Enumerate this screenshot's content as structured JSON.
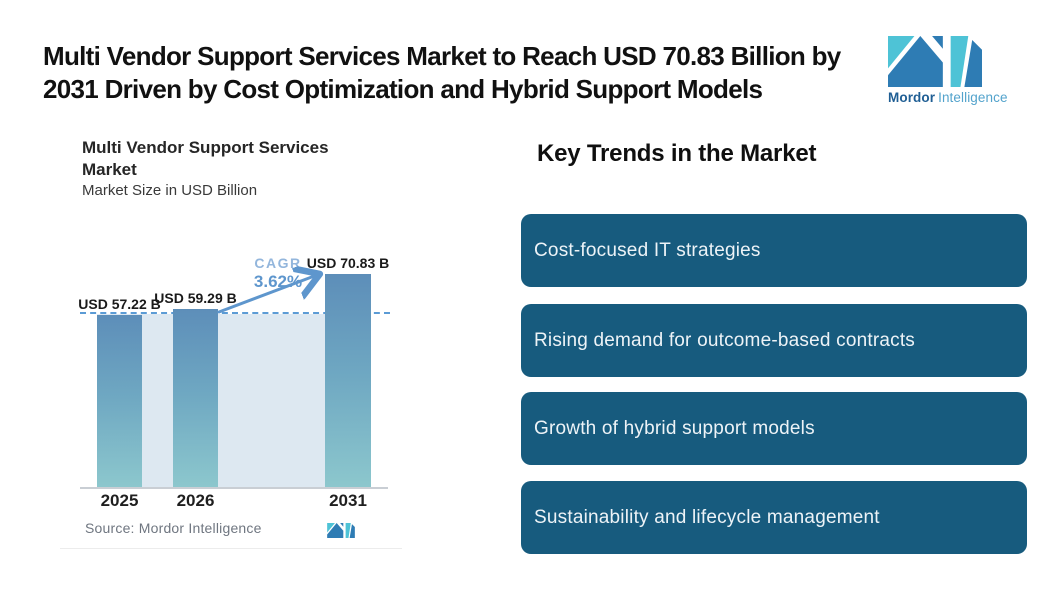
{
  "header": {
    "title_line1": "Multi Vendor Support Services Market to Reach USD 70.83 Billion by",
    "title_line2": "2031 Driven by Cost Optimization and Hybrid Support Models",
    "brand": {
      "name_bold": "Mordor",
      "name_light": "Intelligence"
    }
  },
  "chart": {
    "title_line1": "Multi Vendor Support Services",
    "title_line2": "Market",
    "subtitle": "Market Size in USD Billion",
    "cagr_label": "CAGR",
    "cagr_value": "3.62%",
    "source": "Source: Mordor Intelligence"
  },
  "chart_data": {
    "type": "bar",
    "categories": [
      "2025",
      "2026",
      "2031"
    ],
    "values": [
      57.22,
      59.29,
      70.83
    ],
    "bar_labels": [
      "USD 57.22 B",
      "USD 59.29 B",
      "USD 70.83 B"
    ],
    "title": "Multi Vendor Support Services Market",
    "xlabel": "",
    "ylabel": "Market Size in USD Billion",
    "ylim": [
      0,
      75
    ],
    "cagr": "3.62%",
    "grid": false,
    "legend": "none",
    "annotations": [
      "CAGR 3.62% arrow from 2026 bar to 2031 bar",
      "dashed reference line at 2025 level"
    ]
  },
  "trends": {
    "heading": "Key Trends in the Market",
    "items": [
      "Cost-focused IT strategies",
      "Rising demand for outcome-based contracts",
      "Growth of hybrid support models",
      "Sustainability and lifecycle management"
    ]
  },
  "colors": {
    "accent_blue": "#5e96cd",
    "cagr_label_blue": "#93b6dc",
    "dashed_line": "#5b9bd5",
    "band": "#dde8f1",
    "bar_top": "#5d8eb9",
    "bar_bottom": "#8cc7cd",
    "card_bg": "#175b7e",
    "card_text": "#edf3f7",
    "logo_blue": "#2e7cb4",
    "logo_teal": "#4ec3d6"
  }
}
